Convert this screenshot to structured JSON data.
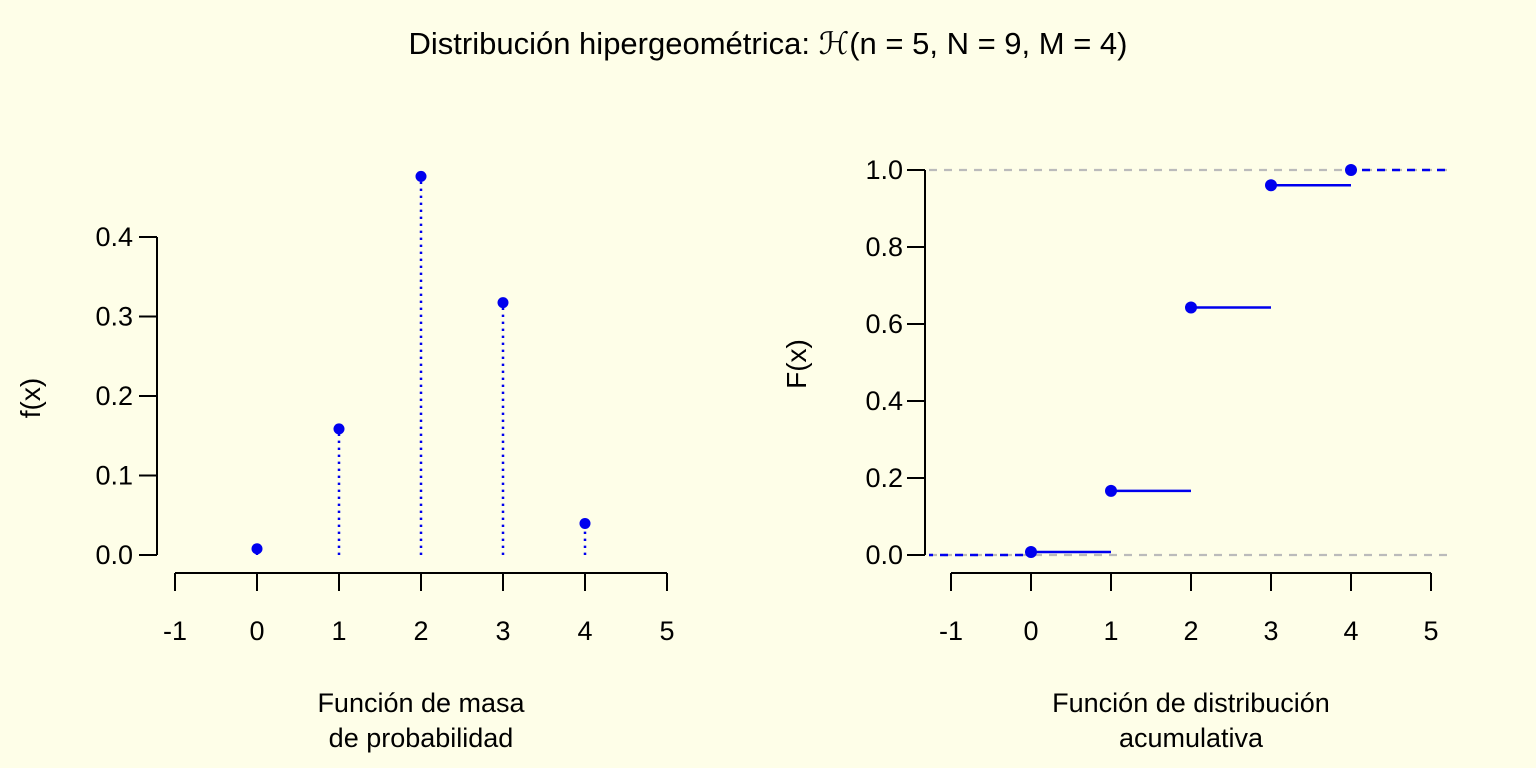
{
  "title": {
    "prefix": "Distribución hipergeométrica: ",
    "symbol": "ℋ",
    "args": "(n = 5, N = 9, M = 4)",
    "full": "Distribución hipergeométrica: ℋ(n = 5, N = 9, M = 4)"
  },
  "distribution": {
    "name": "hipergeométrica",
    "n": 5,
    "N": 9,
    "M": 4
  },
  "colors": {
    "background": "#FEFEE8",
    "data_blue": "#0000EE",
    "dashed_gray": "#BBBBBB",
    "axis_black": "#000000"
  },
  "chart_data": [
    {
      "type": "stem",
      "panel": "left",
      "ylabel": "f(x)",
      "xlabel_lines": [
        "Función de masa",
        "de probabilidad"
      ],
      "x": [
        0,
        1,
        2,
        3,
        4
      ],
      "y": [
        0.0079,
        0.1587,
        0.4762,
        0.3175,
        0.0397
      ],
      "xtick_values": [
        -1,
        0,
        1,
        2,
        3,
        4,
        5
      ],
      "xtick_labels": [
        "-1",
        "0",
        "1",
        "2",
        "3",
        "4",
        "5"
      ],
      "ytick_values": [
        0.0,
        0.1,
        0.2,
        0.3,
        0.4
      ],
      "ytick_labels": [
        "0.0",
        "0.1",
        "0.2",
        "0.3",
        "0.4"
      ],
      "xlim": [
        -1,
        5
      ],
      "ylim": [
        0,
        0.4762
      ],
      "grid": false,
      "style": "blue dotted vertical stems with filled circle markers"
    },
    {
      "type": "step",
      "panel": "right",
      "ylabel": "F(x)",
      "xlabel_lines": [
        "Función de distribución",
        "acumulativa"
      ],
      "x": [
        0,
        1,
        2,
        3,
        4
      ],
      "y": [
        0.0079,
        0.1667,
        0.6429,
        0.9603,
        1.0
      ],
      "xtick_values": [
        -1,
        0,
        1,
        2,
        3,
        4,
        5
      ],
      "xtick_labels": [
        "-1",
        "0",
        "1",
        "2",
        "3",
        "4",
        "5"
      ],
      "ytick_values": [
        0.0,
        0.2,
        0.4,
        0.6,
        0.8,
        1.0
      ],
      "ytick_labels": [
        "0.0",
        "0.2",
        "0.4",
        "0.6",
        "0.8",
        "1.0"
      ],
      "xlim": [
        -1,
        5
      ],
      "ylim": [
        0,
        1
      ],
      "grid": false,
      "guide_lines": [
        0,
        1
      ],
      "style": "right-continuous CDF steps: solid blue segments closed at left with filled circles, dashed blue tails, gray dashed guides at F=0 and F=1"
    }
  ]
}
